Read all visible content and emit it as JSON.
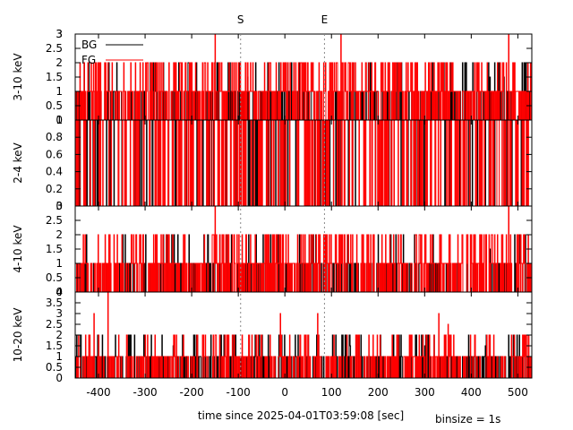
{
  "chart_data": {
    "type": "line",
    "subtype": "step-histogram lightcurve",
    "xlabel": "time since 2025-04-01T03:59:08 [sec]",
    "note": "binsize = 1s",
    "xlim": [
      -450,
      530
    ],
    "xticks": [
      -400,
      -300,
      -200,
      -100,
      0,
      100,
      200,
      300,
      400,
      500
    ],
    "markers": [
      {
        "label": "S",
        "x": -95
      },
      {
        "label": "E",
        "x": 85
      }
    ],
    "legend": {
      "placement": "top-left",
      "entries": [
        {
          "name": "BG",
          "color": "#000000"
        },
        {
          "name": "FG",
          "color": "#ff0000"
        }
      ]
    },
    "panels": [
      {
        "ylabel": "3-10 keV",
        "ylim": [
          0,
          3
        ],
        "yticks": [
          "0",
          "0.5",
          "1",
          "1.5",
          "2",
          "2.5",
          "3"
        ],
        "ytick_values": [
          0,
          0.5,
          1,
          1.5,
          2,
          2.5,
          3
        ],
        "top_label": "3",
        "series": [
          {
            "name": "BG",
            "color": "#000000",
            "mean_rate": 0.35,
            "spikes": [
              [
                -80,
                1.5
              ],
              [
                440,
                1.5
              ],
              [
                470,
                1.5
              ]
            ]
          },
          {
            "name": "FG",
            "color": "#ff0000",
            "mean_rate": 0.75,
            "spikes": [
              [
                -150,
                3
              ],
              [
                120,
                3
              ],
              [
                480,
                3
              ],
              [
                -270,
                2
              ],
              [
                -200,
                2
              ],
              [
                -155,
                2
              ],
              [
                60,
                2
              ],
              [
                110,
                2
              ],
              [
                140,
                2
              ],
              [
                360,
                2
              ],
              [
                475,
                2
              ]
            ]
          }
        ]
      },
      {
        "ylabel": "2-4 keV",
        "ylim": [
          0,
          1
        ],
        "yticks": [
          "0",
          "0.2",
          "0.4",
          "0.6",
          "0.8"
        ],
        "ytick_values": [
          0,
          0.2,
          0.4,
          0.6,
          0.8
        ],
        "top_label": "1",
        "series": [
          {
            "name": "BG",
            "color": "#000000",
            "mean_rate": 0.12,
            "spikes": []
          },
          {
            "name": "FG",
            "color": "#ff0000",
            "mean_rate": 0.3,
            "spikes": []
          }
        ]
      },
      {
        "ylabel": "4-10 keV",
        "ylim": [
          0,
          3
        ],
        "yticks": [
          "0",
          "0.5",
          "1",
          "1.5",
          "2",
          "2.5"
        ],
        "ytick_values": [
          0,
          0.5,
          1,
          1.5,
          2,
          2.5
        ],
        "top_label": "3",
        "series": [
          {
            "name": "BG",
            "color": "#000000",
            "mean_rate": 0.3,
            "spikes": [
              [
                440,
                1.5
              ]
            ]
          },
          {
            "name": "FG",
            "color": "#ff0000",
            "mean_rate": 0.7,
            "spikes": [
              [
                -150,
                3
              ],
              [
                480,
                3
              ],
              [
                -155,
                2
              ],
              [
                -140,
                2
              ],
              [
                60,
                2
              ],
              [
                110,
                2
              ],
              [
                390,
                2
              ],
              [
                475,
                2
              ]
            ]
          }
        ]
      },
      {
        "ylabel": "10-20 keV",
        "ylim": [
          0,
          4
        ],
        "yticks": [
          "0",
          "0.5",
          "1",
          "1.5",
          "2",
          "2.5",
          "3",
          "3.5"
        ],
        "ytick_values": [
          0,
          0.5,
          1,
          1.5,
          2,
          2.5,
          3,
          3.5
        ],
        "top_label": "4",
        "series": [
          {
            "name": "BG",
            "color": "#000000",
            "mean_rate": 0.45,
            "spikes": [
              [
                -240,
                1.5
              ],
              [
                140,
                1.5
              ],
              [
                300,
                1.5
              ],
              [
                430,
                1.5
              ]
            ]
          },
          {
            "name": "FG",
            "color": "#ff0000",
            "mean_rate": 0.55,
            "spikes": [
              [
                -380,
                4
              ],
              [
                -410,
                3
              ],
              [
                -10,
                3
              ],
              [
                70,
                3
              ],
              [
                330,
                3
              ],
              [
                350,
                2.5
              ],
              [
                -300,
                2
              ],
              [
                -140,
                2
              ],
              [
                -50,
                2
              ],
              [
                180,
                2
              ],
              [
                320,
                2
              ],
              [
                440,
                2
              ],
              [
                510,
                2
              ]
            ]
          }
        ]
      }
    ]
  }
}
